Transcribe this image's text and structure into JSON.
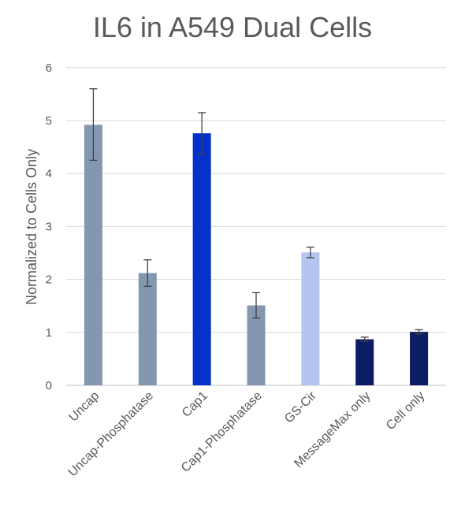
{
  "chart_data": {
    "type": "bar",
    "title": "IL6 in A549 Dual Cells",
    "xlabel": "",
    "ylabel": "Normalized to Cells Only",
    "ylim": [
      0,
      6
    ],
    "yticks": [
      "0",
      "1",
      "2",
      "3",
      "4",
      "5",
      "6"
    ],
    "grid": true,
    "categories": [
      "Uncap",
      "Uncap-Phosphatase",
      "Cap1",
      "Cap1-Phosphatase",
      "GS-Cir",
      "MessageMax only",
      "Cell only"
    ],
    "values": [
      4.92,
      2.12,
      4.76,
      1.51,
      2.51,
      0.87,
      1.01
    ],
    "error_low": [
      4.25,
      1.87,
      4.37,
      1.27,
      2.41,
      0.83,
      0.97
    ],
    "error_high": [
      5.6,
      2.37,
      5.15,
      1.75,
      2.61,
      0.91,
      1.05
    ],
    "colors": [
      "#8497b0",
      "#8497b0",
      "#0432c8",
      "#8497b0",
      "#b4c5f2",
      "#0d1d63",
      "#0d1d63"
    ]
  }
}
